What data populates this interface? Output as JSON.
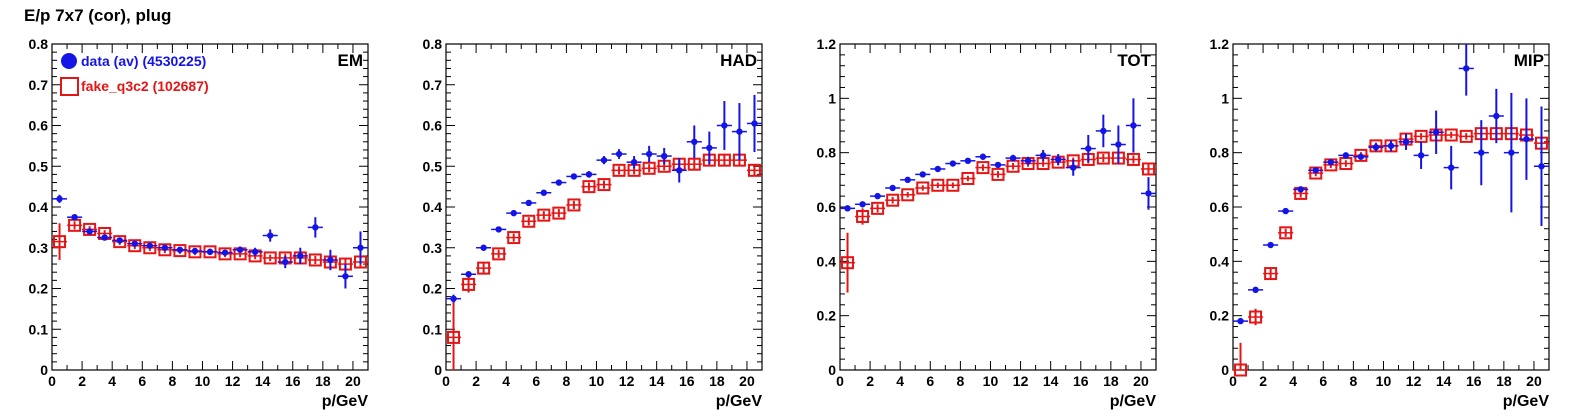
{
  "figure": {
    "title": "E/p 7x7 (cor), plug"
  },
  "colors": {
    "data": "#1414e6",
    "fake": "#e61414",
    "axis": "#000000"
  },
  "legend": [
    {
      "label": "data (av) (4530225)",
      "marker": "filled-circle",
      "color": "#1414e6"
    },
    {
      "label": "fake_q3c2 (102687)",
      "marker": "open-square",
      "color": "#e61414"
    }
  ],
  "chart_data": [
    {
      "type": "scatter",
      "panel_label": "EM",
      "xlabel": "p/GeV",
      "xlim": [
        0,
        21
      ],
      "ylim": [
        0,
        0.8
      ],
      "yticks": [
        "0",
        "0.1",
        "0.2",
        "0.3",
        "0.4",
        "0.5",
        "0.6",
        "0.7",
        "0.8"
      ],
      "xticks": [
        "0",
        "2",
        "4",
        "6",
        "8",
        "10",
        "12",
        "14",
        "16",
        "18",
        "20"
      ],
      "series": [
        {
          "name": "data (av) (4530225)",
          "x": [
            0.5,
            1.5,
            2.5,
            3.5,
            4.5,
            5.5,
            6.5,
            7.5,
            8.5,
            9.5,
            10.5,
            11.5,
            12.5,
            13.5,
            14.5,
            15.5,
            16.5,
            17.5,
            18.5,
            19.5,
            20.5
          ],
          "y": [
            0.42,
            0.375,
            0.34,
            0.325,
            0.318,
            0.31,
            0.305,
            0.3,
            0.295,
            0.292,
            0.29,
            0.288,
            0.295,
            0.29,
            0.33,
            0.265,
            0.28,
            0.35,
            0.27,
            0.23,
            0.3
          ],
          "err": [
            0.01,
            0.005,
            0.005,
            0.005,
            0.005,
            0.005,
            0.005,
            0.005,
            0.005,
            0.005,
            0.005,
            0.006,
            0.008,
            0.01,
            0.015,
            0.015,
            0.02,
            0.025,
            0.025,
            0.03,
            0.04
          ]
        },
        {
          "name": "fake_q3c2 (102687)",
          "x": [
            0.5,
            1.5,
            2.5,
            3.5,
            4.5,
            5.5,
            6.5,
            7.5,
            8.5,
            9.5,
            10.5,
            11.5,
            12.5,
            13.5,
            14.5,
            15.5,
            16.5,
            17.5,
            18.5,
            19.5,
            20.5
          ],
          "y": [
            0.315,
            0.355,
            0.345,
            0.335,
            0.315,
            0.305,
            0.3,
            0.295,
            0.293,
            0.29,
            0.29,
            0.285,
            0.285,
            0.28,
            0.275,
            0.275,
            0.275,
            0.27,
            0.265,
            0.26,
            0.265
          ],
          "err": [
            0.045,
            0.01,
            0.008,
            0.008,
            0.008,
            0.008,
            0.008,
            0.008,
            0.008,
            0.008,
            0.008,
            0.008,
            0.008,
            0.008,
            0.008,
            0.01,
            0.01,
            0.01,
            0.01,
            0.012,
            0.015
          ]
        }
      ]
    },
    {
      "type": "scatter",
      "panel_label": "HAD",
      "xlabel": "p/GeV",
      "xlim": [
        0,
        21
      ],
      "ylim": [
        0,
        0.8
      ],
      "yticks": [
        "0",
        "0.1",
        "0.2",
        "0.3",
        "0.4",
        "0.5",
        "0.6",
        "0.7",
        "0.8"
      ],
      "xticks": [
        "0",
        "2",
        "4",
        "6",
        "8",
        "10",
        "12",
        "14",
        "16",
        "18",
        "20"
      ],
      "series": [
        {
          "name": "data (av) (4530225)",
          "x": [
            0.5,
            1.5,
            2.5,
            3.5,
            4.5,
            5.5,
            6.5,
            7.5,
            8.5,
            9.5,
            10.5,
            11.5,
            12.5,
            13.5,
            14.5,
            15.5,
            16.5,
            17.5,
            18.5,
            19.5,
            20.5
          ],
          "y": [
            0.175,
            0.235,
            0.3,
            0.345,
            0.385,
            0.41,
            0.435,
            0.46,
            0.475,
            0.48,
            0.515,
            0.53,
            0.51,
            0.53,
            0.525,
            0.49,
            0.56,
            0.545,
            0.6,
            0.585,
            0.605
          ],
          "err": [
            0.01,
            0.005,
            0.005,
            0.005,
            0.005,
            0.005,
            0.005,
            0.006,
            0.007,
            0.008,
            0.01,
            0.012,
            0.015,
            0.02,
            0.02,
            0.03,
            0.04,
            0.04,
            0.06,
            0.07,
            0.07
          ]
        },
        {
          "name": "fake_q3c2 (102687)",
          "x": [
            0.5,
            1.5,
            2.5,
            3.5,
            4.5,
            5.5,
            6.5,
            7.5,
            8.5,
            9.5,
            10.5,
            11.5,
            12.5,
            13.5,
            14.5,
            15.5,
            16.5,
            17.5,
            18.5,
            19.5,
            20.5
          ],
          "y": [
            0.08,
            0.21,
            0.25,
            0.285,
            0.325,
            0.365,
            0.38,
            0.385,
            0.405,
            0.45,
            0.455,
            0.49,
            0.49,
            0.495,
            0.5,
            0.505,
            0.505,
            0.515,
            0.515,
            0.515,
            0.49
          ],
          "err": [
            0.09,
            0.02,
            0.012,
            0.01,
            0.01,
            0.01,
            0.01,
            0.01,
            0.01,
            0.01,
            0.01,
            0.01,
            0.01,
            0.01,
            0.01,
            0.01,
            0.012,
            0.012,
            0.015,
            0.015,
            0.015
          ]
        }
      ]
    },
    {
      "type": "scatter",
      "panel_label": "TOT",
      "xlabel": "p/GeV",
      "xlim": [
        0,
        21
      ],
      "ylim": [
        0,
        1.2
      ],
      "yticks": [
        "0",
        "0.2",
        "0.4",
        "0.6",
        "0.8",
        "1",
        "1.2"
      ],
      "xticks": [
        "0",
        "2",
        "4",
        "6",
        "8",
        "10",
        "12",
        "14",
        "16",
        "18",
        "20"
      ],
      "series": [
        {
          "name": "data (av) (4530225)",
          "x": [
            0.5,
            1.5,
            2.5,
            3.5,
            4.5,
            5.5,
            6.5,
            7.5,
            8.5,
            9.5,
            10.5,
            11.5,
            12.5,
            13.5,
            14.5,
            15.5,
            16.5,
            17.5,
            18.5,
            19.5,
            20.5
          ],
          "y": [
            0.595,
            0.61,
            0.64,
            0.67,
            0.7,
            0.72,
            0.74,
            0.76,
            0.77,
            0.785,
            0.755,
            0.78,
            0.77,
            0.79,
            0.775,
            0.745,
            0.815,
            0.88,
            0.83,
            0.9,
            0.65
          ],
          "err": [
            0.01,
            0.005,
            0.005,
            0.005,
            0.005,
            0.005,
            0.005,
            0.006,
            0.008,
            0.008,
            0.01,
            0.012,
            0.015,
            0.02,
            0.02,
            0.03,
            0.05,
            0.06,
            0.07,
            0.1,
            0.06
          ]
        },
        {
          "name": "fake_q3c2 (102687)",
          "x": [
            0.5,
            1.5,
            2.5,
            3.5,
            4.5,
            5.5,
            6.5,
            7.5,
            8.5,
            9.5,
            10.5,
            11.5,
            12.5,
            13.5,
            14.5,
            15.5,
            16.5,
            17.5,
            18.5,
            19.5,
            20.5
          ],
          "y": [
            0.395,
            0.565,
            0.595,
            0.625,
            0.645,
            0.67,
            0.68,
            0.68,
            0.705,
            0.745,
            0.72,
            0.75,
            0.76,
            0.76,
            0.765,
            0.77,
            0.775,
            0.78,
            0.78,
            0.775,
            0.74
          ],
          "err": [
            0.11,
            0.03,
            0.015,
            0.012,
            0.01,
            0.01,
            0.01,
            0.01,
            0.01,
            0.012,
            0.012,
            0.012,
            0.012,
            0.012,
            0.012,
            0.012,
            0.015,
            0.015,
            0.015,
            0.015,
            0.02
          ]
        }
      ]
    },
    {
      "type": "scatter",
      "panel_label": "MIP",
      "xlabel": "p/GeV",
      "xlim": [
        0,
        21
      ],
      "ylim": [
        0,
        1.2
      ],
      "yticks": [
        "0",
        "0.2",
        "0.4",
        "0.6",
        "0.8",
        "1",
        "1.2"
      ],
      "xticks": [
        "0",
        "2",
        "4",
        "6",
        "8",
        "10",
        "12",
        "14",
        "16",
        "18",
        "20"
      ],
      "series": [
        {
          "name": "data (av) (4530225)",
          "x": [
            0.5,
            1.5,
            2.5,
            3.5,
            4.5,
            5.5,
            6.5,
            7.5,
            8.5,
            9.5,
            10.5,
            11.5,
            12.5,
            13.5,
            14.5,
            15.5,
            16.5,
            17.5,
            18.5,
            19.5,
            20.5
          ],
          "y": [
            0.18,
            0.295,
            0.46,
            0.585,
            0.665,
            0.735,
            0.765,
            0.79,
            0.785,
            0.82,
            0.825,
            0.84,
            0.79,
            0.875,
            0.745,
            1.11,
            0.8,
            0.935,
            0.8,
            0.85,
            0.75
          ],
          "err": [
            0.01,
            0.005,
            0.005,
            0.006,
            0.006,
            0.006,
            0.007,
            0.008,
            0.01,
            0.015,
            0.02,
            0.03,
            0.05,
            0.08,
            0.08,
            0.1,
            0.12,
            0.1,
            0.22,
            0.15,
            0.22
          ]
        },
        {
          "name": "fake_q3c2 (102687)",
          "x": [
            0.5,
            1.5,
            2.5,
            3.5,
            4.5,
            5.5,
            6.5,
            7.5,
            8.5,
            9.5,
            10.5,
            11.5,
            12.5,
            13.5,
            14.5,
            15.5,
            16.5,
            17.5,
            18.5,
            19.5,
            20.5
          ],
          "y": [
            0.0,
            0.195,
            0.355,
            0.505,
            0.65,
            0.725,
            0.755,
            0.76,
            0.79,
            0.825,
            0.825,
            0.85,
            0.86,
            0.865,
            0.865,
            0.86,
            0.87,
            0.87,
            0.87,
            0.865,
            0.835
          ],
          "err": [
            0.1,
            0.03,
            0.02,
            0.015,
            0.015,
            0.012,
            0.012,
            0.012,
            0.012,
            0.012,
            0.012,
            0.012,
            0.012,
            0.012,
            0.012,
            0.012,
            0.015,
            0.015,
            0.015,
            0.015,
            0.02
          ]
        }
      ]
    }
  ]
}
